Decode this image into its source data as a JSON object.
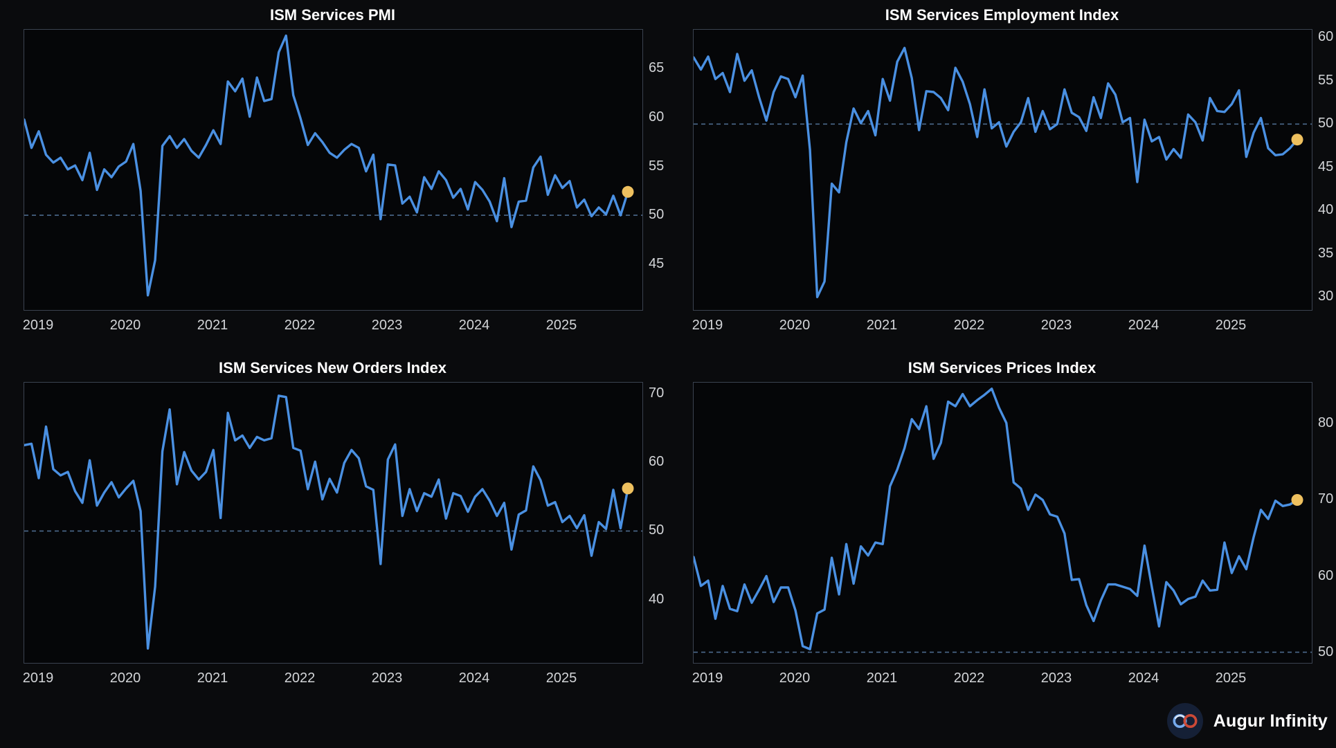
{
  "style": {
    "background": "#0a0b0d",
    "plot_background": "#050608",
    "plot_border_color": "#3b4350",
    "line_color": "#4a90e2",
    "ref_line_color": "#4c6a8c",
    "dot_color": "#eec05f",
    "tick_label_color": "#d3d5d8",
    "title_color": "#ffffff"
  },
  "branding": {
    "name": "Augur Infinity",
    "logo": "infinity-icon",
    "logo_colors": {
      "circle": "#152036",
      "left_loop": "#76aaec",
      "right_loop": "#cc4936"
    }
  },
  "chart_data": [
    {
      "type": "line",
      "title": "ISM Services PMI",
      "x_start": "2018-11",
      "frequency": "monthly",
      "x_tick_labels": [
        "2019",
        "2020",
        "2021",
        "2022",
        "2023",
        "2024",
        "2025"
      ],
      "x_tick_months": [
        2,
        14,
        26,
        38,
        50,
        62,
        74
      ],
      "y_ticks": [
        45,
        50,
        55,
        60,
        65
      ],
      "ylim": [
        40.3,
        69.0
      ],
      "ref_line": 50,
      "last_value": 52.4,
      "values": [
        59.8,
        56.9,
        58.6,
        56.2,
        55.4,
        55.9,
        54.7,
        55.1,
        53.6,
        56.4,
        52.6,
        54.7,
        53.9,
        55.0,
        55.5,
        57.3,
        52.5,
        41.8,
        45.4,
        57.1,
        58.1,
        56.9,
        57.8,
        56.6,
        55.9,
        57.2,
        58.7,
        57.3,
        63.7,
        62.7,
        64.0,
        60.1,
        64.1,
        61.7,
        61.9,
        66.7,
        68.4,
        62.3,
        59.9,
        57.2,
        58.4,
        57.5,
        56.4,
        55.9,
        56.7,
        57.3,
        56.9,
        54.5,
        56.2,
        49.6,
        55.2,
        55.1,
        51.2,
        51.9,
        50.3,
        53.9,
        52.7,
        54.5,
        53.6,
        51.8,
        52.7,
        50.6,
        53.4,
        52.6,
        51.4,
        49.4,
        53.8,
        48.8,
        51.4,
        51.5,
        54.9,
        56.0,
        52.1,
        54.1,
        52.8,
        53.5,
        50.8,
        51.6,
        49.9,
        50.8,
        50.1,
        52.0,
        50.0,
        52.4
      ]
    },
    {
      "type": "line",
      "title": "ISM Services Employment Index",
      "x_start": "2018-11",
      "frequency": "monthly",
      "x_tick_labels": [
        "2019",
        "2020",
        "2021",
        "2022",
        "2023",
        "2024",
        "2025"
      ],
      "x_tick_months": [
        2,
        14,
        26,
        38,
        50,
        62,
        74
      ],
      "y_ticks": [
        30,
        35,
        40,
        45,
        50,
        55,
        60
      ],
      "ylim": [
        28.5,
        60.9
      ],
      "ref_line": 50,
      "last_value": 48.2,
      "values": [
        57.7,
        56.3,
        57.8,
        55.2,
        55.9,
        53.7,
        58.1,
        55.0,
        56.2,
        53.1,
        50.4,
        53.7,
        55.5,
        55.2,
        53.1,
        55.6,
        47.0,
        30.0,
        31.8,
        43.1,
        42.1,
        47.9,
        51.8,
        50.1,
        51.5,
        48.7,
        55.2,
        52.7,
        57.2,
        58.8,
        55.3,
        49.3,
        53.8,
        53.7,
        53.0,
        51.6,
        56.5,
        54.9,
        52.3,
        48.5,
        54.0,
        49.5,
        50.2,
        47.4,
        49.1,
        50.2,
        53.0,
        49.1,
        51.5,
        49.4,
        50.0,
        54.0,
        51.3,
        50.8,
        49.2,
        53.1,
        50.7,
        54.7,
        53.4,
        50.2,
        50.7,
        43.3,
        50.5,
        48.0,
        48.5,
        45.9,
        47.1,
        46.1,
        51.1,
        50.2,
        48.1,
        53.0,
        51.5,
        51.4,
        52.3,
        53.9,
        46.2,
        49.0,
        50.7,
        47.2,
        46.4,
        46.5,
        47.2,
        48.2
      ]
    },
    {
      "type": "line",
      "title": "ISM Services New Orders Index",
      "x_start": "2018-11",
      "frequency": "monthly",
      "x_tick_labels": [
        "2019",
        "2020",
        "2021",
        "2022",
        "2023",
        "2024",
        "2025"
      ],
      "x_tick_months": [
        2,
        14,
        26,
        38,
        50,
        62,
        74
      ],
      "y_ticks": [
        40,
        50,
        60,
        70
      ],
      "ylim": [
        30.8,
        71.6
      ],
      "ref_line": 50,
      "last_value": 56.2,
      "values": [
        62.5,
        62.7,
        57.7,
        65.2,
        59.0,
        58.1,
        58.6,
        55.8,
        54.1,
        60.3,
        53.7,
        55.6,
        57.1,
        54.9,
        56.2,
        57.3,
        52.9,
        32.9,
        41.9,
        61.6,
        67.7,
        56.8,
        61.5,
        58.8,
        57.5,
        58.6,
        61.8,
        51.9,
        67.2,
        63.2,
        63.9,
        62.1,
        63.7,
        63.2,
        63.5,
        69.7,
        69.5,
        62.1,
        61.7,
        56.1,
        60.1,
        54.6,
        57.6,
        55.6,
        59.9,
        61.8,
        60.6,
        56.5,
        56.0,
        45.2,
        60.4,
        62.6,
        52.2,
        56.1,
        52.9,
        55.5,
        55.0,
        57.5,
        51.8,
        55.5,
        55.1,
        52.8,
        55.0,
        56.1,
        54.4,
        52.2,
        54.1,
        47.3,
        52.4,
        53.0,
        59.4,
        57.4,
        53.7,
        54.2,
        51.3,
        52.2,
        50.4,
        52.3,
        46.4,
        51.3,
        50.3,
        56.0,
        50.4,
        56.2
      ]
    },
    {
      "type": "line",
      "title": "ISM Services Prices Index",
      "x_start": "2018-11",
      "frequency": "monthly",
      "x_tick_labels": [
        "2019",
        "2020",
        "2021",
        "2022",
        "2023",
        "2024",
        "2025"
      ],
      "x_tick_months": [
        2,
        14,
        26,
        38,
        50,
        62,
        74
      ],
      "y_ticks": [
        50,
        60,
        70,
        80
      ],
      "ylim": [
        48.6,
        85.4
      ],
      "ref_line": 50,
      "last_value": 70.0,
      "values": [
        62.5,
        58.7,
        59.4,
        54.4,
        58.7,
        55.7,
        55.4,
        58.9,
        56.5,
        58.2,
        60.0,
        56.6,
        58.5,
        58.5,
        55.5,
        50.8,
        50.4,
        55.1,
        55.6,
        62.4,
        57.6,
        64.2,
        59.0,
        63.9,
        62.7,
        64.4,
        64.2,
        71.8,
        74.0,
        76.8,
        80.6,
        79.3,
        82.3,
        75.4,
        77.5,
        82.9,
        82.3,
        83.9,
        82.3,
        83.1,
        83.8,
        84.6,
        82.1,
        80.1,
        72.3,
        71.5,
        68.7,
        70.7,
        70.0,
        68.1,
        67.8,
        65.6,
        59.5,
        59.6,
        56.2,
        54.1,
        56.8,
        58.9,
        58.9,
        58.6,
        58.3,
        57.4,
        64.0,
        58.6,
        53.4,
        59.2,
        58.1,
        56.3,
        57.0,
        57.3,
        59.4,
        58.1,
        58.2,
        64.4,
        60.4,
        62.6,
        60.9,
        65.1,
        68.7,
        67.5,
        69.9,
        69.2,
        69.4,
        70.0
      ]
    }
  ]
}
